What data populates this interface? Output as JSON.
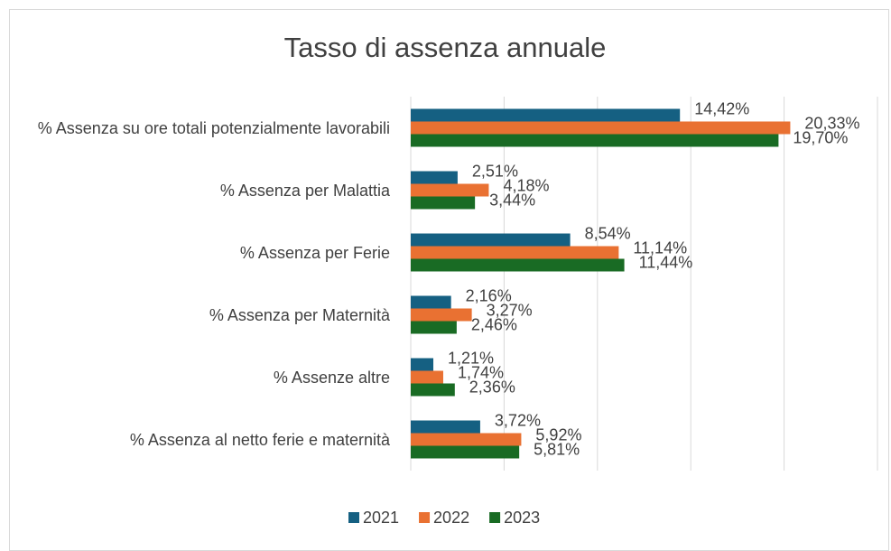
{
  "chart_data": {
    "type": "bar",
    "orientation": "horizontal",
    "title": "Tasso di assenza annuale",
    "categories": [
      "% Assenza su ore totali potenzialmente lavorabili",
      "% Assenza per Malattia",
      "% Assenza per Ferie",
      "% Assenza per Maternità",
      "% Assenze altre",
      "% Assenza al netto ferie e maternità"
    ],
    "series": [
      {
        "name": "2021",
        "color": "#156082",
        "values": [
          14.42,
          2.51,
          8.54,
          2.16,
          1.21,
          3.72
        ],
        "value_labels": [
          "14,42%",
          "2,51%",
          "8,54%",
          "2,16%",
          "1,21%",
          "3,72%"
        ]
      },
      {
        "name": "2022",
        "color": "#E97132",
        "values": [
          20.33,
          4.18,
          11.14,
          3.27,
          1.74,
          5.92
        ],
        "value_labels": [
          "20,33%",
          "4,18%",
          "11,14%",
          "3,27%",
          "1,74%",
          "5,92%"
        ]
      },
      {
        "name": "2023",
        "color": "#196B24",
        "values": [
          19.7,
          3.44,
          11.44,
          2.46,
          2.36,
          5.81
        ],
        "value_labels": [
          "19,70%",
          "3,44%",
          "11,44%",
          "2,46%",
          "2,36%",
          "5,81%"
        ]
      }
    ],
    "xlim": [
      0,
      25
    ],
    "xticks": [
      0,
      5,
      10,
      15,
      20,
      25
    ],
    "grid": true,
    "legend": "bottom"
  }
}
